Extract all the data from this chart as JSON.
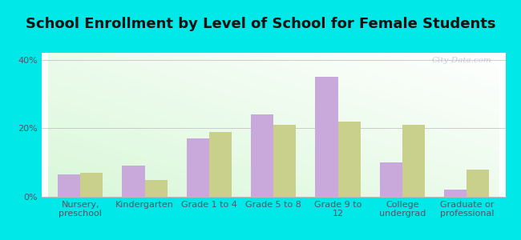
{
  "title": "School Enrollment by Level of School for Female Students",
  "categories": [
    "Nursery,\npreschool",
    "Kindergarten",
    "Grade 1 to 4",
    "Grade 5 to 8",
    "Grade 9 to\n12",
    "College\nundergrad",
    "Graduate or\nprofessional"
  ],
  "clifton_values": [
    6.5,
    9.0,
    17.0,
    24.0,
    35.0,
    10.0,
    2.0
  ],
  "illinois_values": [
    7.0,
    5.0,
    19.0,
    21.0,
    22.0,
    21.0,
    8.0
  ],
  "clifton_color": "#c9a8dc",
  "illinois_color": "#c8d08c",
  "background_color": "#00e8e8",
  "ylim": [
    0,
    42
  ],
  "yticks": [
    0,
    20,
    40
  ],
  "ytick_labels": [
    "0%",
    "20%",
    "40%"
  ],
  "bar_width": 0.35,
  "title_fontsize": 13,
  "tick_fontsize": 8,
  "legend_fontsize": 9,
  "watermark": "City-Data.com"
}
